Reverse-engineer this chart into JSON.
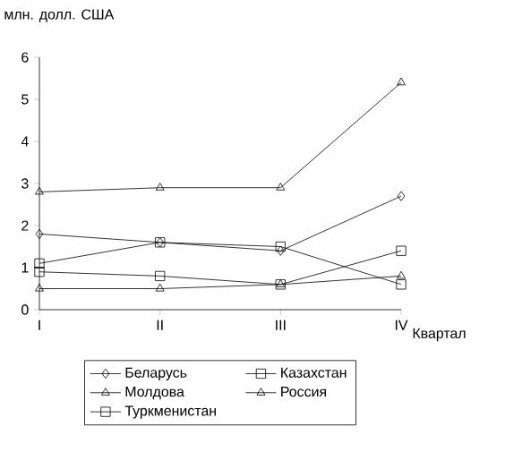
{
  "chart_data": {
    "type": "line",
    "title": "млн. долл. США",
    "xlabel": "Квартал",
    "categories": [
      "I",
      "II",
      "III",
      "IV"
    ],
    "series": [
      {
        "name": "Беларусь",
        "color": "#000000",
        "marker": "diamond",
        "values": [
          1.8,
          1.6,
          1.4,
          2.7
        ]
      },
      {
        "name": "Казахстан",
        "color": "#000000",
        "marker": "square",
        "values": [
          0.9,
          0.8,
          0.6,
          1.4
        ]
      },
      {
        "name": "Молдова",
        "color": "#000000",
        "marker": "triangle",
        "values": [
          0.5,
          0.5,
          0.6,
          0.8
        ]
      },
      {
        "name": "Россия",
        "color": "#000000",
        "marker": "triangle",
        "values": [
          2.8,
          2.9,
          2.9,
          5.4
        ]
      },
      {
        "name": "Туркменистан",
        "color": "#000000",
        "marker": "square",
        "values": [
          1.1,
          1.6,
          1.5,
          0.6
        ]
      }
    ],
    "ylim": [
      0,
      6
    ],
    "yticks": [
      0,
      1,
      2,
      3,
      4,
      5,
      6
    ],
    "grid": false,
    "legend": "bottom",
    "line_style": "solid"
  }
}
